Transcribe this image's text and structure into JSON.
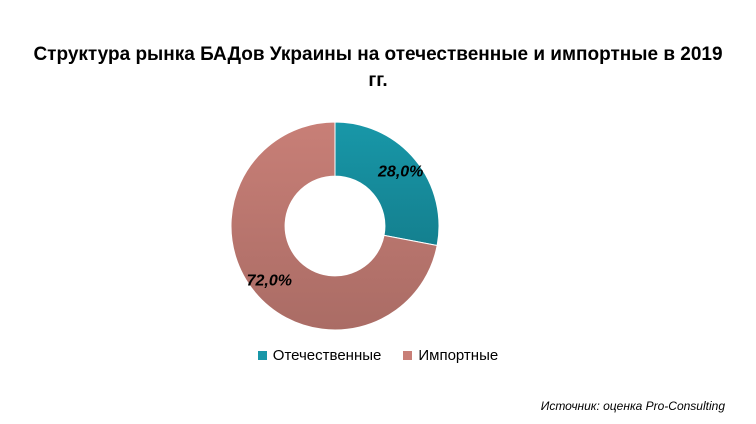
{
  "chart_data": {
    "type": "pie",
    "title_lines": [
      "Структура рынка БАДов Украины на отечественные и импортные в 2019",
      "гг."
    ],
    "categories": [
      "Отечественные",
      "Импортные"
    ],
    "values": [
      28.0,
      72.0
    ],
    "data_labels": [
      "28,0%",
      "72,0%"
    ],
    "colors": [
      "#1897a8",
      "#c87f77"
    ],
    "hole": 0.48,
    "legend_position": "bottom"
  },
  "source_note": "Источник: оценка Pro-Consulting"
}
